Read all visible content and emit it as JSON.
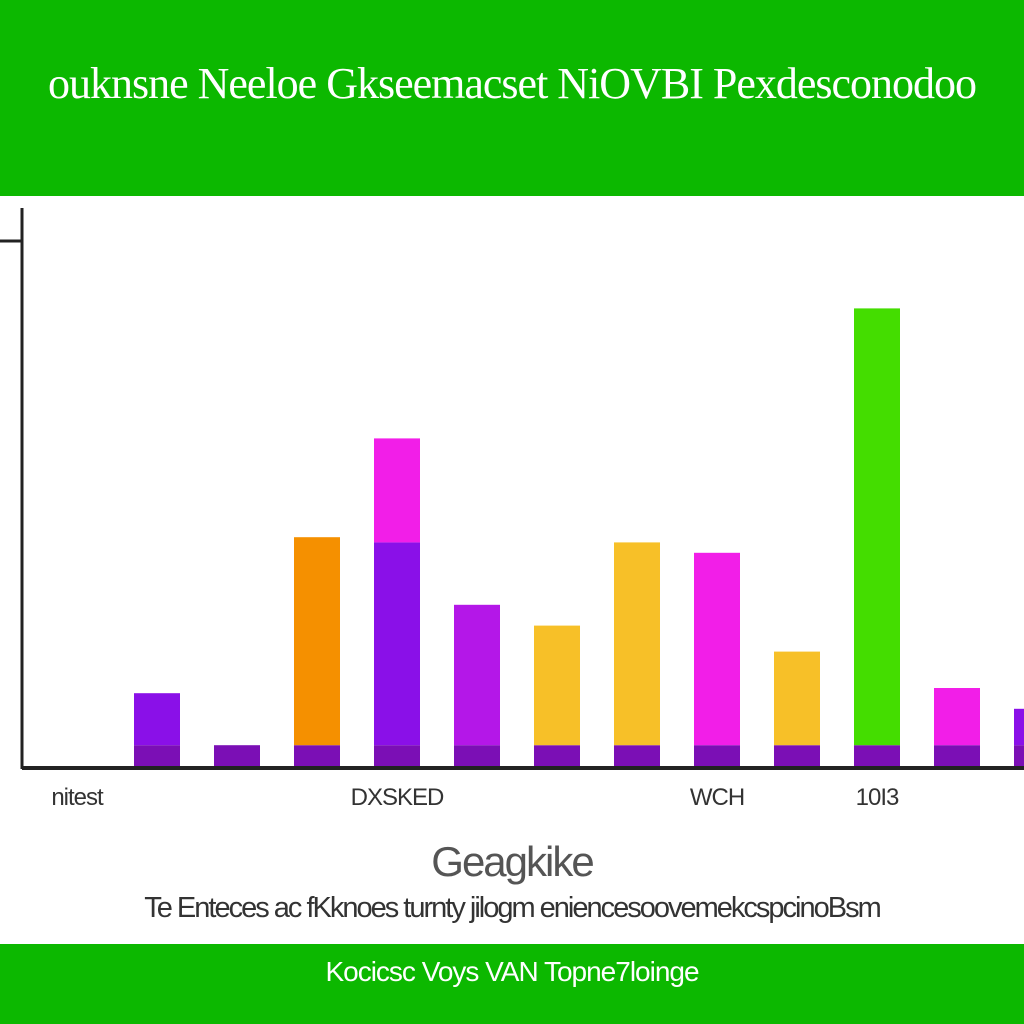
{
  "header": {
    "title": "ouknsne Neeloe Gkseemacset NiOVBI Pexdesconodoo"
  },
  "chart_data": {
    "type": "bar",
    "title": "",
    "xlabel": "Geagkike",
    "ylabel": "",
    "ylim": [
      0,
      100
    ],
    "grid": false,
    "categories": [
      "",
      "",
      "",
      "",
      "",
      "",
      "",
      "",
      "",
      "",
      "",
      "",
      ""
    ],
    "category_labels": [
      {
        "text": "nitest",
        "index": 0
      },
      {
        "text": "DXSKED",
        "index": 4
      },
      {
        "text": "WCH",
        "index": 8
      },
      {
        "text": "10I3",
        "index": 10
      }
    ],
    "series": [
      {
        "values": [
          0,
          4,
          4,
          4,
          4,
          4,
          4,
          4,
          4,
          4,
          4,
          4,
          4
        ],
        "color": "#7b0fb5"
      },
      {
        "values": [
          0,
          10,
          0,
          40,
          39,
          27,
          23,
          39,
          37,
          18,
          84,
          11,
          7
        ],
        "colors": [
          "#7b0fb5",
          "#8a10e8",
          "#8a10e8",
          "#f59000",
          "#8a10e8",
          "#b417e8",
          "#f7c028",
          "#f7c028",
          "#f21ee8",
          "#f7c028",
          "#44dd00",
          "#f21ee8",
          "#8a10e8"
        ]
      },
      {
        "values": [
          0,
          0,
          0,
          0,
          20,
          0,
          0,
          0,
          0,
          0,
          0,
          0,
          0
        ],
        "color": "#f21ee8"
      }
    ]
  },
  "caption": "Te Enteces ac fKknoes turnty jilogm eniencesoovemekcspcinoBsm",
  "footer": {
    "text": "Kocicsc Voys VAN Topne7loinge"
  }
}
